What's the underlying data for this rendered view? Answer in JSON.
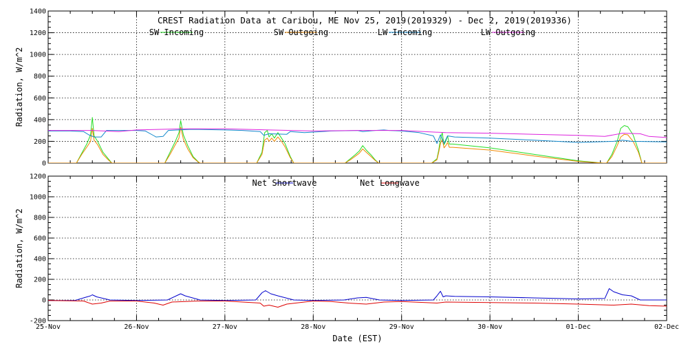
{
  "chart_data": [
    {
      "type": "line",
      "title": "CREST Radiation Data at Caribou, ME   Nov 25, 2019(2019329) - Dec  2, 2019(2019336)",
      "ylabel": "Radiation, W/m^2",
      "xlabel": "",
      "ylim": [
        0,
        1400
      ],
      "yticks": [
        0,
        200,
        400,
        600,
        800,
        1000,
        1200,
        1400
      ],
      "xlim": [
        0,
        7
      ],
      "xticks": [
        0,
        1,
        2,
        3,
        4,
        5,
        6,
        7
      ],
      "grid": true,
      "legend_position": "top",
      "series": [
        {
          "name": "SW Incoming",
          "color": "#22dd22",
          "x": [
            0,
            0.32,
            0.38,
            0.44,
            0.48,
            0.5,
            0.52,
            0.56,
            0.62,
            0.68,
            0.72,
            1.0,
            1.32,
            1.38,
            1.44,
            1.48,
            1.5,
            1.53,
            1.58,
            1.64,
            1.7,
            1.72,
            2.0,
            2.36,
            2.42,
            2.45,
            2.48,
            2.5,
            2.53,
            2.56,
            2.6,
            2.64,
            2.68,
            2.74,
            2.78,
            3.0,
            3.36,
            3.42,
            3.48,
            3.52,
            3.56,
            3.6,
            3.66,
            3.7,
            3.74,
            4.0,
            4.34,
            4.4,
            4.42,
            4.44,
            4.46,
            4.48,
            4.5,
            4.52,
            4.54,
            4.58,
            5.0,
            5.5,
            6.0,
            6.28,
            6.32,
            6.38,
            6.44,
            6.48,
            6.52,
            6.56,
            6.62,
            6.68,
            6.72,
            7.0
          ],
          "y": [
            0,
            0,
            90,
            180,
            260,
            420,
            250,
            200,
            100,
            40,
            0,
            0,
            0,
            100,
            200,
            280,
            390,
            260,
            160,
            60,
            10,
            0,
            0,
            0,
            100,
            280,
            300,
            240,
            270,
            230,
            280,
            230,
            180,
            60,
            0,
            0,
            0,
            40,
            80,
            110,
            160,
            120,
            70,
            30,
            0,
            0,
            0,
            40,
            120,
            220,
            280,
            170,
            200,
            250,
            175,
            175,
            140,
            80,
            20,
            0,
            0,
            80,
            200,
            320,
            345,
            335,
            260,
            120,
            0,
            0
          ]
        },
        {
          "name": "SW Outgoing",
          "color": "#ee8800",
          "x": [
            0,
            0.32,
            0.38,
            0.44,
            0.48,
            0.5,
            0.52,
            0.56,
            0.62,
            0.68,
            0.72,
            1.0,
            1.32,
            1.38,
            1.44,
            1.48,
            1.5,
            1.53,
            1.58,
            1.64,
            1.7,
            1.72,
            2.0,
            2.36,
            2.42,
            2.45,
            2.48,
            2.5,
            2.53,
            2.56,
            2.6,
            2.64,
            2.68,
            2.74,
            2.78,
            3.0,
            3.36,
            3.42,
            3.48,
            3.52,
            3.56,
            3.6,
            3.66,
            3.7,
            3.74,
            4.0,
            4.34,
            4.4,
            4.42,
            4.44,
            4.46,
            4.48,
            4.5,
            4.52,
            4.54,
            4.58,
            5.0,
            5.5,
            6.0,
            6.28,
            6.32,
            6.38,
            6.44,
            6.48,
            6.52,
            6.56,
            6.62,
            6.68,
            6.72,
            7.0
          ],
          "y": [
            0,
            0,
            80,
            150,
            200,
            320,
            210,
            170,
            80,
            30,
            0,
            0,
            0,
            80,
            170,
            230,
            330,
            220,
            130,
            50,
            8,
            0,
            0,
            0,
            80,
            210,
            230,
            200,
            230,
            200,
            240,
            200,
            150,
            50,
            0,
            0,
            0,
            30,
            65,
            90,
            130,
            100,
            55,
            25,
            0,
            0,
            0,
            30,
            100,
            180,
            220,
            140,
            160,
            190,
            145,
            145,
            120,
            65,
            15,
            0,
            0,
            60,
            160,
            240,
            265,
            260,
            200,
            100,
            0,
            0
          ]
        },
        {
          "name": "LW Incoming",
          "color": "#1188cc",
          "x": [
            0,
            0.25,
            0.4,
            0.46,
            0.52,
            0.6,
            0.64,
            0.66,
            0.7,
            1.0,
            1.1,
            1.2,
            1.22,
            1.3,
            1.36,
            1.6,
            1.7,
            2.0,
            2.2,
            2.4,
            2.44,
            2.5,
            2.7,
            2.74,
            2.9,
            3.0,
            3.1,
            3.2,
            3.5,
            3.56,
            3.7,
            3.8,
            3.86,
            4.0,
            4.2,
            4.36,
            4.4,
            4.44,
            4.48,
            4.52,
            4.6,
            5.0,
            5.5,
            6.0,
            6.4,
            6.5,
            6.6,
            7.0
          ],
          "y": [
            295,
            295,
            290,
            260,
            240,
            240,
            280,
            300,
            300,
            300,
            295,
            250,
            240,
            245,
            300,
            310,
            310,
            305,
            300,
            290,
            255,
            270,
            265,
            290,
            280,
            285,
            290,
            295,
            300,
            290,
            300,
            305,
            300,
            295,
            280,
            250,
            180,
            260,
            180,
            250,
            240,
            230,
            210,
            190,
            200,
            210,
            200,
            195
          ]
        },
        {
          "name": "LW Outgoing",
          "color": "#dd22dd",
          "x": [
            0,
            0.5,
            0.8,
            1.0,
            1.5,
            2.0,
            2.5,
            3.0,
            3.5,
            4.0,
            4.5,
            5.0,
            5.5,
            6.0,
            6.3,
            6.5,
            6.7,
            6.8,
            7.0
          ],
          "y": [
            300,
            300,
            290,
            305,
            315,
            315,
            305,
            295,
            300,
            300,
            280,
            275,
            265,
            255,
            245,
            275,
            270,
            245,
            235
          ]
        }
      ]
    },
    {
      "type": "line",
      "title": "",
      "ylabel": "Radiation, W/m^2",
      "xlabel": "Date (EST)",
      "ylim": [
        -200,
        1200
      ],
      "yticks": [
        -200,
        0,
        200,
        400,
        600,
        800,
        1000,
        1200
      ],
      "xlim": [
        0,
        7
      ],
      "xticks": [
        0,
        1,
        2,
        3,
        4,
        5,
        6,
        7
      ],
      "xticklabels": [
        "25-Nov",
        "26-Nov",
        "27-Nov",
        "28-Nov",
        "29-Nov",
        "30-Nov",
        "01-Dec",
        "02-Dec"
      ],
      "grid": true,
      "legend_position": "top",
      "series": [
        {
          "name": "Net Shortwave",
          "color": "#0000cc",
          "x": [
            0,
            0.3,
            0.4,
            0.48,
            0.5,
            0.55,
            0.7,
            1.0,
            1.35,
            1.45,
            1.5,
            1.55,
            1.72,
            2.0,
            2.35,
            2.42,
            2.46,
            2.52,
            2.6,
            2.78,
            3.0,
            3.35,
            3.5,
            3.6,
            3.75,
            4.0,
            4.36,
            4.4,
            4.44,
            4.47,
            4.5,
            4.6,
            5.0,
            5.5,
            6.0,
            6.3,
            6.35,
            6.4,
            6.5,
            6.6,
            6.7,
            7.0
          ],
          "y": [
            -5,
            -5,
            20,
            40,
            50,
            30,
            0,
            -5,
            0,
            40,
            60,
            40,
            0,
            -5,
            0,
            70,
            90,
            60,
            40,
            0,
            -5,
            0,
            20,
            25,
            0,
            -5,
            0,
            40,
            85,
            30,
            40,
            35,
            30,
            20,
            10,
            15,
            110,
            80,
            50,
            40,
            0,
            0
          ]
        },
        {
          "name": "Net Longwave",
          "color": "#dd0000",
          "x": [
            0,
            0.4,
            0.5,
            0.6,
            0.7,
            1.0,
            1.2,
            1.3,
            1.4,
            1.7,
            2.0,
            2.2,
            2.4,
            2.44,
            2.5,
            2.6,
            2.7,
            2.8,
            3.0,
            3.2,
            3.4,
            3.6,
            3.8,
            4.0,
            4.4,
            4.5,
            5.0,
            5.5,
            6.0,
            6.4,
            6.6,
            6.8,
            7.0
          ],
          "y": [
            -5,
            -10,
            -40,
            -30,
            -10,
            -10,
            -30,
            -50,
            -20,
            -10,
            -10,
            -20,
            -30,
            -60,
            -50,
            -70,
            -40,
            -30,
            -10,
            -15,
            -30,
            -40,
            -20,
            -15,
            -30,
            -20,
            -25,
            -30,
            -40,
            -50,
            -40,
            -55,
            -60
          ]
        }
      ]
    }
  ]
}
